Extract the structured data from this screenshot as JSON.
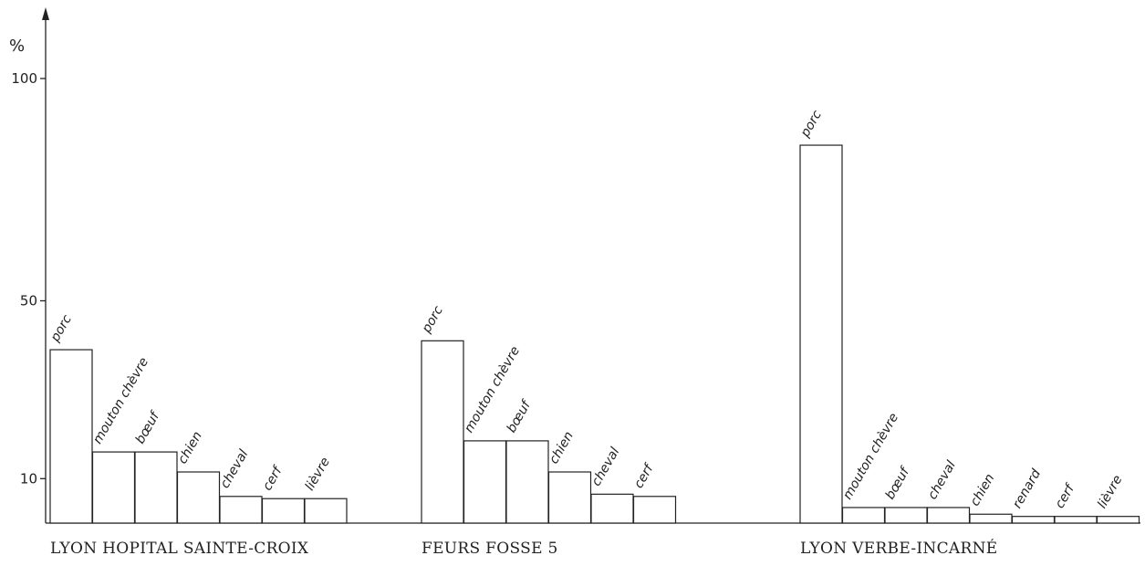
{
  "chart_data": {
    "type": "bar",
    "unit_label": "%",
    "ylim": [
      0,
      110
    ],
    "y_ticks": [
      {
        "value": 10,
        "label": "10"
      },
      {
        "value": 50,
        "label": "50"
      },
      {
        "value": 100,
        "label": "100"
      }
    ],
    "grid": false,
    "legend": "none",
    "groups": [
      {
        "name": "LYON HOPITAL SAINTE-CROIX",
        "bars": [
          {
            "category": "porc",
            "value": 39
          },
          {
            "category": "mouton chèvre",
            "value": 16
          },
          {
            "category": "bœuf",
            "value": 16
          },
          {
            "category": "chien",
            "value": 11.5
          },
          {
            "category": "cheval",
            "value": 6
          },
          {
            "category": "cerf",
            "value": 5.5
          },
          {
            "category": "lièvre",
            "value": 5.5
          }
        ]
      },
      {
        "name": "FEURS FOSSE 5",
        "bars": [
          {
            "category": "porc",
            "value": 41
          },
          {
            "category": "mouton chèvre",
            "value": 18.5
          },
          {
            "category": "bœuf",
            "value": 18.5
          },
          {
            "category": "chien",
            "value": 11.5
          },
          {
            "category": "cheval",
            "value": 6.5
          },
          {
            "category": "cerf",
            "value": 6
          }
        ]
      },
      {
        "name": "LYON VERBE-INCARNÉ",
        "bars": [
          {
            "category": "porc",
            "value": 85
          },
          {
            "category": "mouton chèvre",
            "value": 3.5
          },
          {
            "category": "bœuf",
            "value": 3.5
          },
          {
            "category": "cheval",
            "value": 3.5
          },
          {
            "category": "chien",
            "value": 2
          },
          {
            "category": "renard",
            "value": 1.5
          },
          {
            "category": "cerf",
            "value": 1.5
          },
          {
            "category": "lièvre",
            "value": 1.5
          }
        ]
      }
    ]
  }
}
